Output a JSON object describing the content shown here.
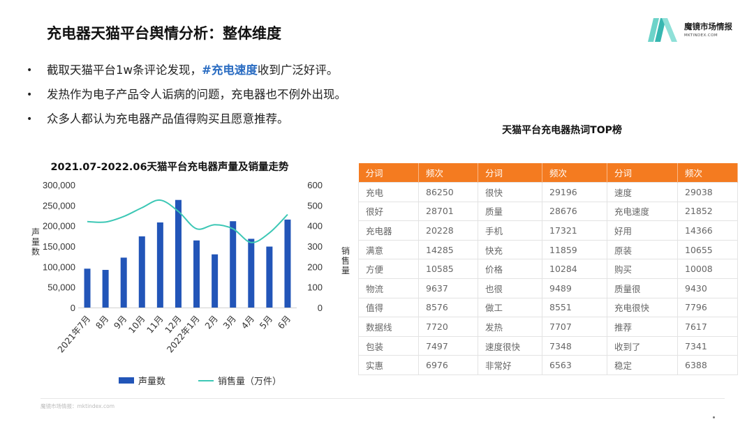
{
  "page": {
    "title": "充电器天猫平台舆情分析：整体维度",
    "logo": {
      "name": "魔镜市场情报",
      "sub": "MKTINDEX.COM",
      "colors": [
        "#37b7b1",
        "#6dd3c9"
      ]
    },
    "bullets": [
      {
        "before": "截取天猫平台1w条评论发现，",
        "highlight": "#充电速度",
        "after": "收到广泛好评。"
      },
      {
        "before": "发热作为电子产品令人诟病的问题，充电器也不例外出现。",
        "highlight": "",
        "after": ""
      },
      {
        "before": "众多人都认为充电器产品值得购买且愿意推荐。",
        "highlight": "",
        "after": ""
      }
    ],
    "bullet_symbol": "•",
    "highlight_color": "#2b6dc2",
    "footer": "魔镜市场情报：mktindex.com"
  },
  "chart_data": {
    "type": "bar",
    "title": "2021.07-2022.06天猫平台充电器声量及销量走势",
    "categories": [
      "2021年7月",
      "8月",
      "9月",
      "10月",
      "11月",
      "12月",
      "2022年1月",
      "2月",
      "3月",
      "4月",
      "5月",
      "6月"
    ],
    "ylabel": "声量数",
    "y2label": "销售量",
    "ylim": [
      0,
      300000
    ],
    "y2lim": [
      0,
      600
    ],
    "yticks": [
      "300,000",
      "250,000",
      "200,000",
      "150,000",
      "100,000",
      "50,000",
      "0"
    ],
    "y2ticks": [
      "600",
      "500",
      "400",
      "300",
      "200",
      "100",
      "0"
    ],
    "series": [
      {
        "name": "声量数",
        "type": "bar",
        "axis": "left",
        "color": "#2255b8",
        "values": [
          95000,
          92000,
          122000,
          174000,
          208000,
          263000,
          164000,
          130000,
          211000,
          168000,
          149000,
          215000
        ]
      },
      {
        "name": "销售量（万件）",
        "type": "line",
        "axis": "right",
        "color": "#3cc7b5",
        "values": [
          420,
          418,
          445,
          488,
          525,
          470,
          385,
          405,
          385,
          318,
          365,
          455
        ]
      }
    ],
    "legend_position": "bottom",
    "grid": false
  },
  "table": {
    "title": "天猫平台充电器热词TOP榜",
    "header_color": "#f47b20",
    "headers": [
      "分词",
      "频次",
      "分词",
      "频次",
      "分词",
      "频次"
    ],
    "rows": [
      [
        "充电",
        "86250",
        "很快",
        "29196",
        "速度",
        "29038"
      ],
      [
        "很好",
        "28701",
        "质量",
        "28676",
        "充电速度",
        "21852"
      ],
      [
        "充电器",
        "20228",
        "手机",
        "17321",
        "好用",
        "14366"
      ],
      [
        "满意",
        "14285",
        "快充",
        "11859",
        "原装",
        "10655"
      ],
      [
        "方便",
        "10585",
        "价格",
        "10284",
        "购买",
        "10008"
      ],
      [
        "物流",
        "9637",
        "也很",
        "9489",
        "质量很",
        "9430"
      ],
      [
        "值得",
        "8576",
        "做工",
        "8551",
        "充电很快",
        "7796"
      ],
      [
        "数据线",
        "7720",
        "发热",
        "7707",
        "推荐",
        "7617"
      ],
      [
        "包装",
        "7497",
        "速度很快",
        "7348",
        "收到了",
        "7341"
      ],
      [
        "实惠",
        "6976",
        "非常好",
        "6563",
        "稳定",
        "6388"
      ]
    ]
  }
}
